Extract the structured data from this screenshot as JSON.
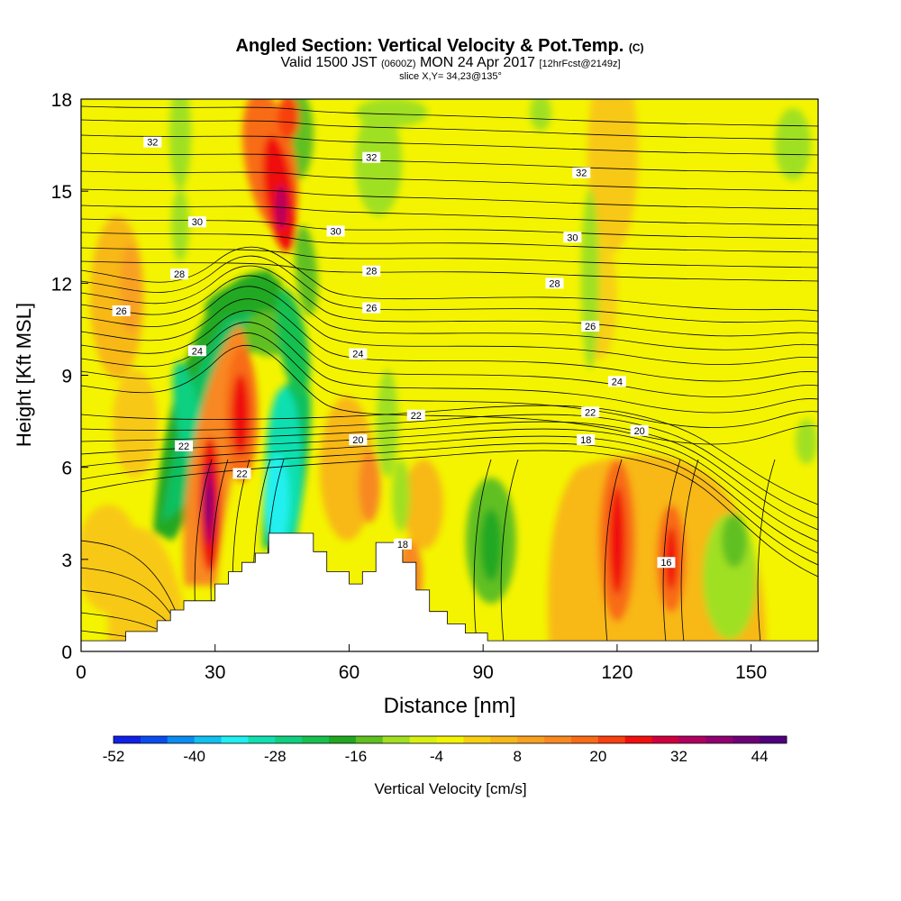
{
  "chart_data": {
    "type": "heatmap",
    "title": "Angled Section: Vertical Velocity & Pot.Temp.",
    "title_suffix": "(C)",
    "subtitle_parts": [
      "Valid 1500 JST ",
      "(0600Z)",
      " MON 24 Apr 2017 ",
      "[12hrFcst@2149z]"
    ],
    "slice_label": "slice X,Y= 34,23@135°",
    "xlabel": "Distance [nm]",
    "ylabel": "Height [Kft MSL]",
    "xlim": [
      0,
      165
    ],
    "ylim": [
      0,
      18
    ],
    "x_ticks": [
      "0",
      "30",
      "60",
      "90",
      "120",
      "150"
    ],
    "y_ticks": [
      "0",
      "3",
      "6",
      "9",
      "12",
      "15",
      "18"
    ],
    "colorbar": {
      "label": "Vertical Velocity [cm/s]",
      "min": -52,
      "max": 48,
      "step": 4,
      "tick_labels": [
        "-52",
        "-40",
        "-28",
        "-16",
        "-4",
        "8",
        "20",
        "32",
        "44"
      ],
      "colors": [
        "#1020e8",
        "#0a4cf0",
        "#0a8cf0",
        "#10c0f0",
        "#20f0f0",
        "#10e0b0",
        "#10d080",
        "#18c050",
        "#20a820",
        "#60c020",
        "#a0e020",
        "#d8f010",
        "#f4f400",
        "#f8d010",
        "#f8b818",
        "#f8a020",
        "#f88820",
        "#f86c18",
        "#f84010",
        "#f01010",
        "#d00040",
        "#b00060",
        "#900070",
        "#700078",
        "#500080"
      ]
    },
    "theta_contour_labels": [
      {
        "text": "32",
        "x": 16,
        "y": 16.6
      },
      {
        "text": "32",
        "x": 65,
        "y": 16.1
      },
      {
        "text": "32",
        "x": 112,
        "y": 15.6
      },
      {
        "text": "30",
        "x": 26,
        "y": 14.0
      },
      {
        "text": "30",
        "x": 57,
        "y": 13.7
      },
      {
        "text": "30",
        "x": 110,
        "y": 13.5
      },
      {
        "text": "28",
        "x": 22,
        "y": 12.3
      },
      {
        "text": "28",
        "x": 65,
        "y": 12.4
      },
      {
        "text": "28",
        "x": 106,
        "y": 12.0
      },
      {
        "text": "26",
        "x": 9,
        "y": 11.1
      },
      {
        "text": "26",
        "x": 65,
        "y": 11.2
      },
      {
        "text": "26",
        "x": 114,
        "y": 10.6
      },
      {
        "text": "24",
        "x": 26,
        "y": 9.8
      },
      {
        "text": "24",
        "x": 62,
        "y": 9.7
      },
      {
        "text": "24",
        "x": 120,
        "y": 8.8
      },
      {
        "text": "22",
        "x": 23,
        "y": 6.7
      },
      {
        "text": "22",
        "x": 36,
        "y": 5.8
      },
      {
        "text": "22",
        "x": 75,
        "y": 7.7
      },
      {
        "text": "22",
        "x": 114,
        "y": 7.8
      },
      {
        "text": "20",
        "x": 62,
        "y": 6.9
      },
      {
        "text": "20",
        "x": 125,
        "y": 7.2
      },
      {
        "text": "18",
        "x": 72,
        "y": 3.5
      },
      {
        "text": "18",
        "x": 113,
        "y": 6.9
      },
      {
        "text": "16",
        "x": 131,
        "y": 2.9
      }
    ]
  }
}
